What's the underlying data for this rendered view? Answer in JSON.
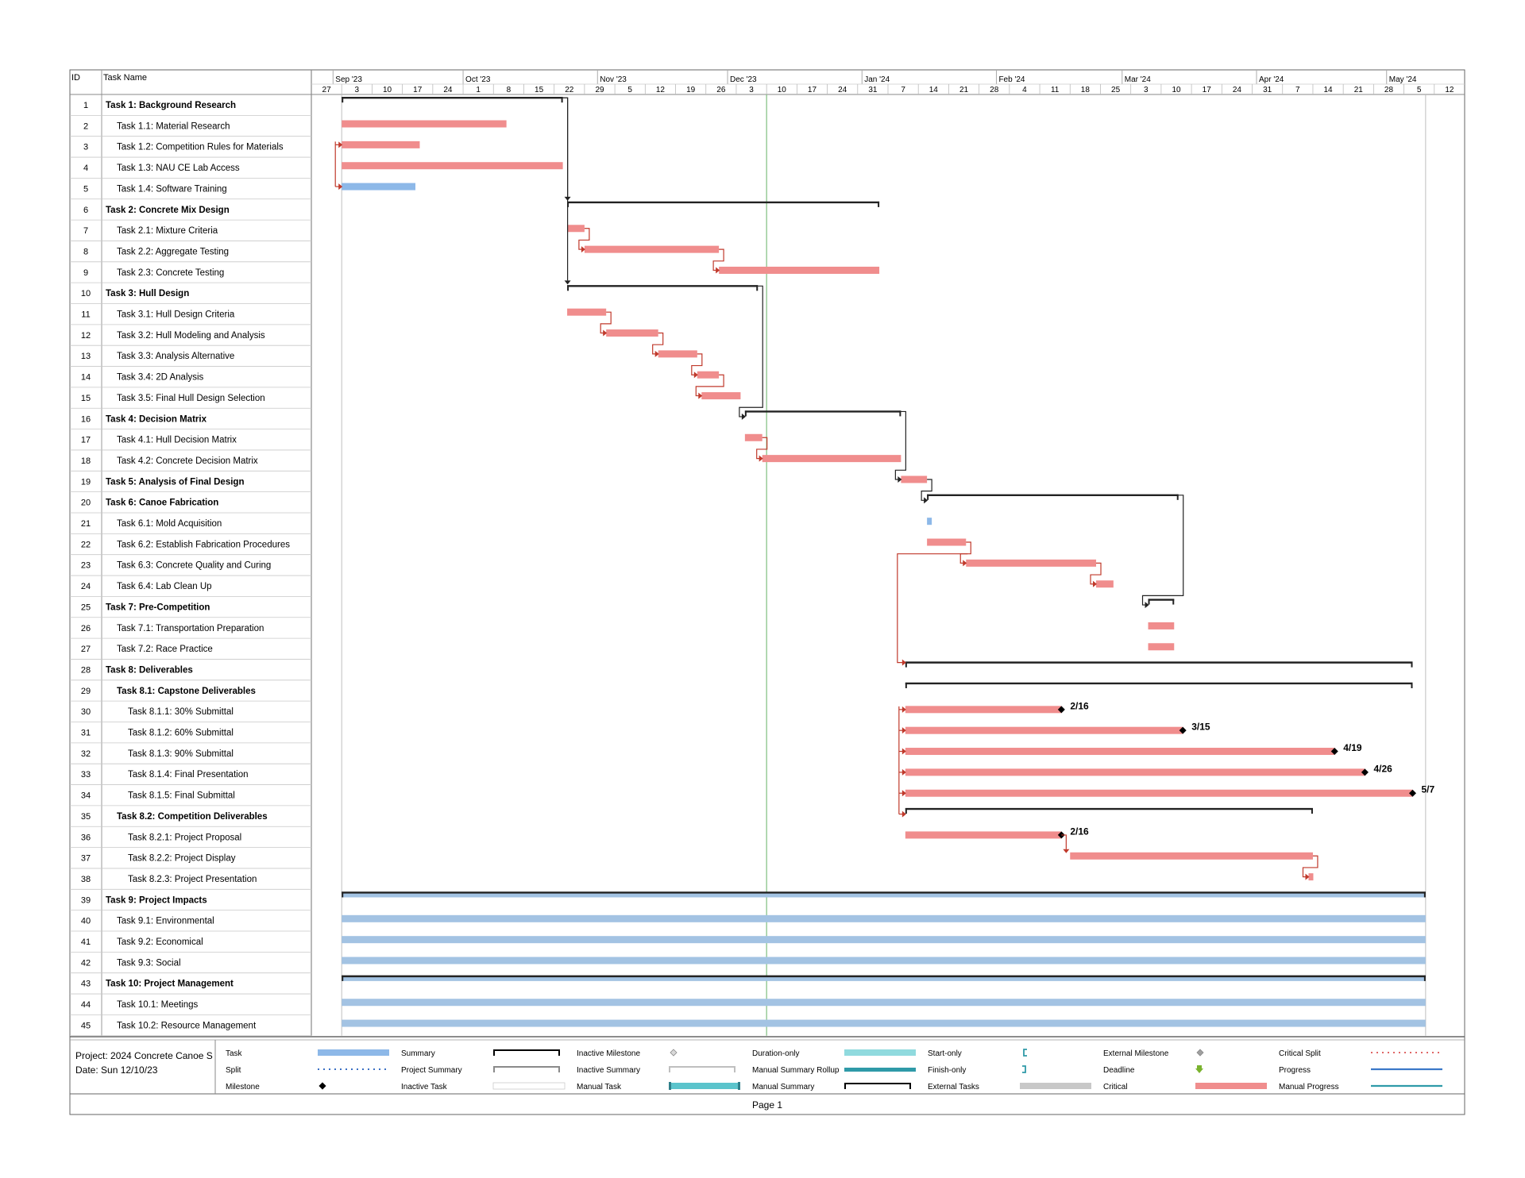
{
  "columns": {
    "id": "ID",
    "task_name": "Task Name"
  },
  "timescale": {
    "months": [
      "Sep '23",
      "Oct '23",
      "Nov '23",
      "Dec '23",
      "Jan '24",
      "Feb '24",
      "Mar '24",
      "Apr '24",
      "May '24"
    ],
    "weeks": [
      "27",
      "3",
      "10",
      "17",
      "24",
      "1",
      "8",
      "15",
      "22",
      "29",
      "5",
      "12",
      "19",
      "26",
      "3",
      "10",
      "17",
      "24",
      "31",
      "7",
      "14",
      "21",
      "28",
      "4",
      "11",
      "18",
      "25",
      "3",
      "10",
      "17",
      "24",
      "31",
      "7",
      "14",
      "21",
      "28",
      "5",
      "12"
    ]
  },
  "chart_data": {
    "type": "gantt",
    "x_start": "2023-08-27",
    "x_end": "2024-05-19",
    "status_date": "2023-12-10",
    "tasks": [
      {
        "id": 1,
        "name": "Task 1: Background Research",
        "level": 0,
        "kind": "summary",
        "start": "2023-09-03",
        "end": "2023-10-24"
      },
      {
        "id": 2,
        "name": "Task 1.1: Material Research",
        "level": 1,
        "kind": "critical",
        "start": "2023-09-03",
        "end": "2023-10-11"
      },
      {
        "id": 3,
        "name": "Task 1.2: Competition Rules for Materials",
        "level": 1,
        "kind": "critical",
        "start": "2023-09-03",
        "end": "2023-09-21"
      },
      {
        "id": 4,
        "name": "Task 1.3: NAU CE Lab Access",
        "level": 1,
        "kind": "critical",
        "start": "2023-09-03",
        "end": "2023-10-24"
      },
      {
        "id": 5,
        "name": "Task 1.4: Software Training",
        "level": 1,
        "kind": "task",
        "start": "2023-09-03",
        "end": "2023-09-20"
      },
      {
        "id": 6,
        "name": "Task 2: Concrete Mix Design",
        "level": 0,
        "kind": "summary",
        "start": "2023-10-25",
        "end": "2024-01-05"
      },
      {
        "id": 7,
        "name": "Task 2.1: Mixture Criteria",
        "level": 1,
        "kind": "critical",
        "start": "2023-10-25",
        "end": "2023-10-29"
      },
      {
        "id": 8,
        "name": "Task 2.2: Aggregate Testing",
        "level": 1,
        "kind": "critical",
        "start": "2023-10-29",
        "end": "2023-11-29"
      },
      {
        "id": 9,
        "name": "Task 2.3: Concrete Testing",
        "level": 1,
        "kind": "critical",
        "start": "2023-11-29",
        "end": "2024-01-05"
      },
      {
        "id": 10,
        "name": "Task 3: Hull Design",
        "level": 0,
        "kind": "summary",
        "start": "2023-10-25",
        "end": "2023-12-08"
      },
      {
        "id": 11,
        "name": "Task 3.1: Hull Design Criteria",
        "level": 1,
        "kind": "critical",
        "start": "2023-10-25",
        "end": "2023-11-03"
      },
      {
        "id": 12,
        "name": "Task 3.2: Hull Modeling and Analysis",
        "level": 1,
        "kind": "critical",
        "start": "2023-11-03",
        "end": "2023-11-15"
      },
      {
        "id": 13,
        "name": "Task 3.3: Analysis Alternative",
        "level": 1,
        "kind": "critical",
        "start": "2023-11-15",
        "end": "2023-11-24"
      },
      {
        "id": 14,
        "name": "Task 3.4: 2D Analysis",
        "level": 1,
        "kind": "critical",
        "start": "2023-11-24",
        "end": "2023-11-29"
      },
      {
        "id": 15,
        "name": "Task 3.5: Final Hull Design Selection",
        "level": 1,
        "kind": "critical",
        "start": "2023-11-25",
        "end": "2023-12-04"
      },
      {
        "id": 16,
        "name": "Task 4: Decision Matrix",
        "level": 0,
        "kind": "summary",
        "start": "2023-12-05",
        "end": "2024-01-10"
      },
      {
        "id": 17,
        "name": "Task 4.1: Hull Decision Matrix",
        "level": 1,
        "kind": "critical",
        "start": "2023-12-05",
        "end": "2023-12-09"
      },
      {
        "id": 18,
        "name": "Task 4.2: Concrete Decision Matrix",
        "level": 1,
        "kind": "critical",
        "start": "2023-12-09",
        "end": "2024-01-10"
      },
      {
        "id": 19,
        "name": "Task 5: Analysis of Final Design",
        "level": 0,
        "kind": "critical",
        "start": "2024-01-10",
        "end": "2024-01-16"
      },
      {
        "id": 20,
        "name": "Task 6: Canoe Fabrication",
        "level": 0,
        "kind": "summary",
        "start": "2024-01-16",
        "end": "2024-03-14"
      },
      {
        "id": 21,
        "name": "Task 6.1: Mold Acquisition",
        "level": 1,
        "kind": "task",
        "start": "2024-01-16",
        "end": "2024-01-17"
      },
      {
        "id": 22,
        "name": "Task 6.2: Establish Fabrication Procedures",
        "level": 1,
        "kind": "critical",
        "start": "2024-01-16",
        "end": "2024-01-25"
      },
      {
        "id": 23,
        "name": "Task 6.3: Concrete Quality and Curing",
        "level": 1,
        "kind": "critical",
        "start": "2024-01-25",
        "end": "2024-02-24"
      },
      {
        "id": 24,
        "name": "Task 6.4: Lab Clean Up",
        "level": 1,
        "kind": "critical",
        "start": "2024-02-24",
        "end": "2024-02-28"
      },
      {
        "id": 25,
        "name": "Task 7: Pre-Competition",
        "level": 0,
        "kind": "summary",
        "start": "2024-03-07",
        "end": "2024-03-13"
      },
      {
        "id": 26,
        "name": "Task 7.1: Transportation Preparation",
        "level": 1,
        "kind": "critical",
        "start": "2024-03-07",
        "end": "2024-03-13"
      },
      {
        "id": 27,
        "name": "Task 7.2: Race Practice",
        "level": 1,
        "kind": "critical",
        "start": "2024-03-07",
        "end": "2024-03-13"
      },
      {
        "id": 28,
        "name": "Task 8: Deliverables",
        "level": 0,
        "kind": "summary",
        "start": "2024-01-11",
        "end": "2024-05-07"
      },
      {
        "id": 29,
        "name": "Task 8.1: Capstone Deliverables",
        "level": 1,
        "kind": "summary",
        "start": "2024-01-11",
        "end": "2024-05-07"
      },
      {
        "id": 30,
        "name": "Task 8.1.1: 30% Submittal",
        "level": 2,
        "kind": "critical",
        "start": "2024-01-11",
        "end": "2024-02-16",
        "milestone": "2/16"
      },
      {
        "id": 31,
        "name": "Task 8.1.2: 60% Submittal",
        "level": 2,
        "kind": "critical",
        "start": "2024-01-11",
        "end": "2024-03-15",
        "milestone": "3/15"
      },
      {
        "id": 32,
        "name": "Task 8.1.3: 90% Submittal",
        "level": 2,
        "kind": "critical",
        "start": "2024-01-11",
        "end": "2024-04-19",
        "milestone": "4/19"
      },
      {
        "id": 33,
        "name": "Task 8.1.4: Final Presentation",
        "level": 2,
        "kind": "critical",
        "start": "2024-01-11",
        "end": "2024-04-26",
        "milestone": "4/26"
      },
      {
        "id": 34,
        "name": "Task 8.1.5: Final Submittal",
        "level": 2,
        "kind": "critical",
        "start": "2024-01-11",
        "end": "2024-05-07",
        "milestone": "5/7"
      },
      {
        "id": 35,
        "name": "Task 8.2: Competition Deliverables",
        "level": 1,
        "kind": "summary",
        "start": "2024-01-11",
        "end": "2024-04-14"
      },
      {
        "id": 36,
        "name": "Task 8.2.1: Project Proposal",
        "level": 2,
        "kind": "critical",
        "start": "2024-01-11",
        "end": "2024-02-16",
        "milestone": "2/16"
      },
      {
        "id": 37,
        "name": "Task 8.2.2: Project Display",
        "level": 2,
        "kind": "critical",
        "start": "2024-02-18",
        "end": "2024-04-14"
      },
      {
        "id": 38,
        "name": "Task 8.2.3: Project Presentation",
        "level": 2,
        "kind": "critical",
        "start": "2024-04-13",
        "end": "2024-04-14"
      },
      {
        "id": 39,
        "name": "Task 9: Project Impacts",
        "level": 0,
        "kind": "summary",
        "start": "2023-09-03",
        "end": "2024-05-10"
      },
      {
        "id": 40,
        "name": "Task 9.1: Environmental",
        "level": 1,
        "kind": "task",
        "start": "2023-09-03",
        "end": "2024-05-10"
      },
      {
        "id": 41,
        "name": "Task 9.2: Economical",
        "level": 1,
        "kind": "task",
        "start": "2023-09-03",
        "end": "2024-05-10"
      },
      {
        "id": 42,
        "name": "Task 9.3: Social",
        "level": 1,
        "kind": "task",
        "start": "2023-09-03",
        "end": "2024-05-10"
      },
      {
        "id": 43,
        "name": "Task 10: Project Management",
        "level": 0,
        "kind": "summary",
        "start": "2023-09-03",
        "end": "2024-05-10"
      },
      {
        "id": 44,
        "name": "Task 10.1: Meetings",
        "level": 1,
        "kind": "task",
        "start": "2023-09-03",
        "end": "2024-05-10"
      },
      {
        "id": 45,
        "name": "Task 10.2: Resource Management",
        "level": 1,
        "kind": "task",
        "start": "2023-09-03",
        "end": "2024-05-10"
      }
    ]
  },
  "footer": {
    "project": "Project: 2024 Concrete Canoe S",
    "date": "Date: Sun 12/10/23",
    "page": "Page 1"
  },
  "legend": [
    {
      "label": "Task",
      "symbol": "task-bar",
      "color": "#8db8e8"
    },
    {
      "label": "Split",
      "symbol": "split-dots",
      "color": "#3a6fc4"
    },
    {
      "label": "Milestone",
      "symbol": "milestone-diamond",
      "color": "#000000"
    },
    {
      "label": "Summary",
      "symbol": "summary-bracket",
      "color": "#000000"
    },
    {
      "label": "Project Summary",
      "symbol": "project-summary-bracket",
      "color": "#8a8a8a"
    },
    {
      "label": "Inactive Task",
      "symbol": "inactive-task-bar",
      "color": "#ffffff"
    },
    {
      "label": "Inactive Milestone",
      "symbol": "inactive-milestone-diamond",
      "color": "#d9d9d9"
    },
    {
      "label": "Inactive Summary",
      "symbol": "inactive-summary-bracket",
      "color": "#bfbfbf"
    },
    {
      "label": "Manual Task",
      "symbol": "manual-task-bar",
      "color": "#5bc4cc"
    },
    {
      "label": "Duration-only",
      "symbol": "duration-only-bar",
      "color": "#7dd3d8"
    },
    {
      "label": "Manual Summary Rollup",
      "symbol": "manual-summary-rollup-bar",
      "color": "#2f9aa8"
    },
    {
      "label": "Manual Summary",
      "symbol": "manual-summary-bracket",
      "color": "#000000"
    },
    {
      "label": "Start-only",
      "symbol": "start-only-bracket",
      "color": "#2f9aa8"
    },
    {
      "label": "Finish-only",
      "symbol": "finish-only-bracket",
      "color": "#2f9aa8"
    },
    {
      "label": "External Tasks",
      "symbol": "external-tasks-bar",
      "color": "#c8c8c8"
    },
    {
      "label": "External Milestone",
      "symbol": "external-milestone-diamond",
      "color": "#a0a0a0"
    },
    {
      "label": "Deadline",
      "symbol": "deadline-arrow",
      "color": "#7ab32e"
    },
    {
      "label": "Critical",
      "symbol": "critical-bar",
      "color": "#f08d8d"
    },
    {
      "label": "Critical Split",
      "symbol": "critical-split-dots",
      "color": "#e06666"
    },
    {
      "label": "Progress",
      "symbol": "progress-line",
      "color": "#3a78c8"
    },
    {
      "label": "Manual Progress",
      "symbol": "manual-progress-line",
      "color": "#2f9aa8"
    }
  ],
  "colors": {
    "critical": "#f08d8d",
    "task": "#8db8e8",
    "impact": "#a3c3e3",
    "summary": "#222222",
    "link_critical": "#c0392b",
    "link_normal": "#222222",
    "status_line": "#7fbf7f",
    "grid": "#c8c8c8"
  }
}
